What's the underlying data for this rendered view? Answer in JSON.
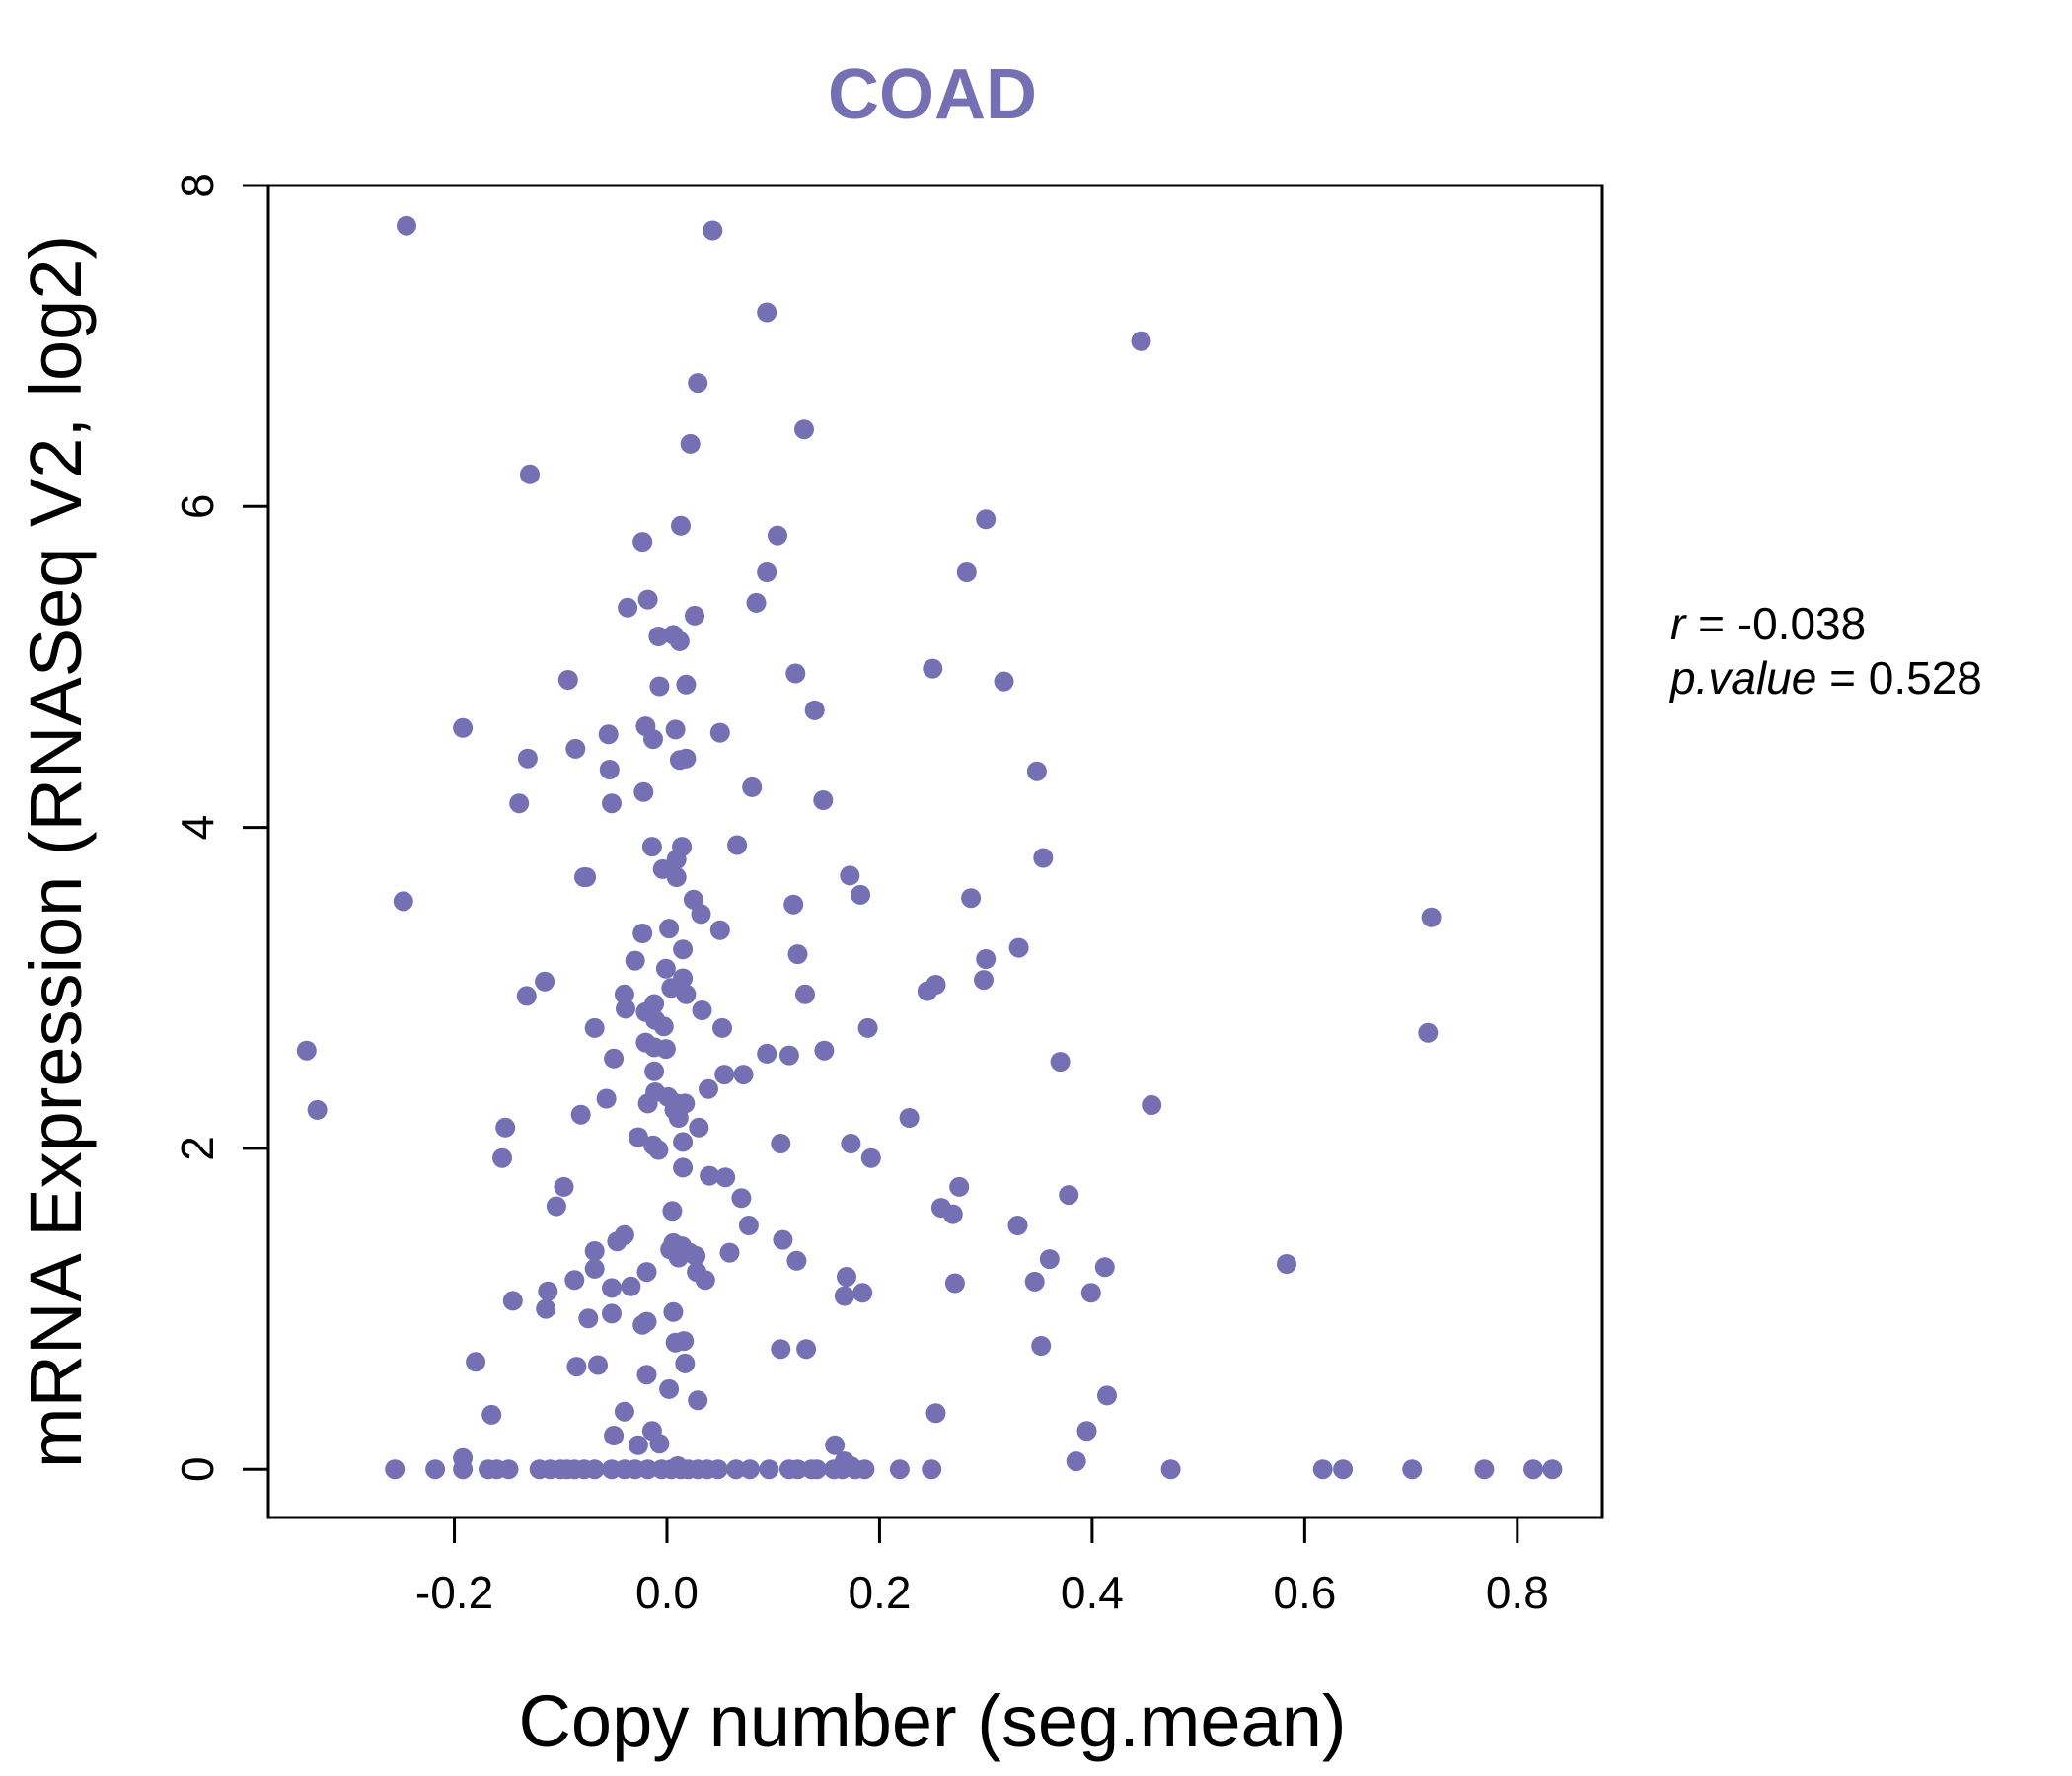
{
  "chart_data": {
    "type": "scatter",
    "title": "COAD",
    "xlabel": "Copy number (seg.mean)",
    "ylabel": "mRNA Expression (RNASeq V2, log2)",
    "xlim": [
      -0.375,
      0.88
    ],
    "ylim": [
      -0.3,
      8.0
    ],
    "x_ticks": [
      "-0.2",
      "0.0",
      "0.2",
      "0.4",
      "0.6",
      "0.8"
    ],
    "y_ticks": [
      "0",
      "2",
      "4",
      "6",
      "8"
    ],
    "grid": false,
    "legend": "none",
    "point_color": "#7570b3",
    "stats": {
      "r_label": "r",
      "r_value": "-0.038",
      "p_label": "p.value",
      "p_value": "0.528"
    },
    "points": [
      [
        -0.245,
        7.75
      ],
      [
        0.043,
        7.72
      ],
      [
        0.094,
        7.21
      ],
      [
        0.446,
        7.03
      ],
      [
        0.029,
        6.77
      ],
      [
        0.129,
        6.48
      ],
      [
        0.022,
        6.39
      ],
      [
        -0.129,
        6.2
      ],
      [
        0.3,
        5.92
      ],
      [
        0.013,
        5.88
      ],
      [
        0.104,
        5.82
      ],
      [
        -0.023,
        5.78
      ],
      [
        0.094,
        5.59
      ],
      [
        0.282,
        5.59
      ],
      [
        -0.018,
        5.42
      ],
      [
        0.084,
        5.4
      ],
      [
        -0.037,
        5.37
      ],
      [
        0.026,
        5.32
      ],
      [
        -0.008,
        5.19
      ],
      [
        0.006,
        5.2
      ],
      [
        0.012,
        5.16
      ],
      [
        0.25,
        4.99
      ],
      [
        0.121,
        4.96
      ],
      [
        0.317,
        4.91
      ],
      [
        -0.093,
        4.92
      ],
      [
        -0.007,
        4.88
      ],
      [
        0.018,
        4.89
      ],
      [
        0.139,
        4.73
      ],
      [
        -0.192,
        4.62
      ],
      [
        -0.02,
        4.63
      ],
      [
        0.008,
        4.61
      ],
      [
        0.05,
        4.59
      ],
      [
        -0.055,
        4.58
      ],
      [
        -0.013,
        4.55
      ],
      [
        -0.086,
        4.49
      ],
      [
        0.012,
        4.42
      ],
      [
        0.018,
        4.43
      ],
      [
        -0.131,
        4.43
      ],
      [
        -0.054,
        4.36
      ],
      [
        0.348,
        4.35
      ],
      [
        0.08,
        4.25
      ],
      [
        -0.022,
        4.22
      ],
      [
        -0.139,
        4.15
      ],
      [
        -0.052,
        4.15
      ],
      [
        0.147,
        4.17
      ],
      [
        0.014,
        3.88
      ],
      [
        -0.014,
        3.88
      ],
      [
        0.066,
        3.89
      ],
      [
        0.009,
        3.8
      ],
      [
        0.354,
        3.81
      ],
      [
        -0.004,
        3.74
      ],
      [
        0.009,
        3.69
      ],
      [
        -0.076,
        3.69
      ],
      [
        -0.078,
        3.69
      ],
      [
        0.172,
        3.7
      ],
      [
        0.182,
        3.58
      ],
      [
        0.286,
        3.56
      ],
      [
        -0.248,
        3.54
      ],
      [
        0.025,
        3.55
      ],
      [
        0.119,
        3.52
      ],
      [
        0.032,
        3.46
      ],
      [
        0.719,
        3.44
      ],
      [
        0.002,
        3.37
      ],
      [
        0.05,
        3.36
      ],
      [
        -0.023,
        3.34
      ],
      [
        0.331,
        3.25
      ],
      [
        0.015,
        3.24
      ],
      [
        0.123,
        3.21
      ],
      [
        -0.03,
        3.17
      ],
      [
        0.3,
        3.18
      ],
      [
        -0.001,
        3.12
      ],
      [
        0.015,
        3.06
      ],
      [
        0.298,
        3.05
      ],
      [
        -0.115,
        3.04
      ],
      [
        0.253,
        3.02
      ],
      [
        0.004,
        3.0
      ],
      [
        0.245,
        2.98
      ],
      [
        -0.132,
        2.95
      ],
      [
        0.13,
        2.96
      ],
      [
        -0.04,
        2.96
      ],
      [
        0.018,
        2.96
      ],
      [
        -0.012,
        2.9
      ],
      [
        -0.02,
        2.85
      ],
      [
        0.033,
        2.86
      ],
      [
        -0.039,
        2.87
      ],
      [
        -0.011,
        2.8
      ],
      [
        -0.003,
        2.76
      ],
      [
        -0.068,
        2.75
      ],
      [
        0.052,
        2.75
      ],
      [
        0.189,
        2.75
      ],
      [
        0.716,
        2.72
      ],
      [
        -0.02,
        2.66
      ],
      [
        -0.012,
        2.63
      ],
      [
        -0.001,
        2.62
      ],
      [
        -0.339,
        2.61
      ],
      [
        0.148,
        2.61
      ],
      [
        0.094,
        2.59
      ],
      [
        0.115,
        2.58
      ],
      [
        -0.05,
        2.56
      ],
      [
        0.37,
        2.54
      ],
      [
        -0.012,
        2.48
      ],
      [
        0.072,
        2.46
      ],
      [
        0.054,
        2.46
      ],
      [
        0.039,
        2.37
      ],
      [
        -0.011,
        2.35
      ],
      [
        0.001,
        2.32
      ],
      [
        -0.057,
        2.31
      ],
      [
        0.009,
        2.28
      ],
      [
        -0.018,
        2.28
      ],
      [
        0.017,
        2.28
      ],
      [
        0.456,
        2.27
      ],
      [
        0.007,
        2.24
      ],
      [
        -0.329,
        2.24
      ],
      [
        -0.081,
        2.21
      ],
      [
        0.011,
        2.19
      ],
      [
        0.228,
        2.19
      ],
      [
        0.03,
        2.13
      ],
      [
        -0.152,
        2.13
      ],
      [
        -0.027,
        2.07
      ],
      [
        -0.013,
        2.02
      ],
      [
        0.015,
        2.04
      ],
      [
        0.107,
        2.03
      ],
      [
        0.173,
        2.03
      ],
      [
        -0.008,
        1.99
      ],
      [
        0.192,
        1.94
      ],
      [
        -0.155,
        1.94
      ],
      [
        0.015,
        1.88
      ],
      [
        0.04,
        1.83
      ],
      [
        0.055,
        1.82
      ],
      [
        -0.097,
        1.76
      ],
      [
        0.275,
        1.76
      ],
      [
        0.378,
        1.71
      ],
      [
        0.07,
        1.69
      ],
      [
        -0.104,
        1.64
      ],
      [
        0.258,
        1.63
      ],
      [
        0.005,
        1.61
      ],
      [
        0.269,
        1.59
      ],
      [
        0.077,
        1.52
      ],
      [
        0.33,
        1.52
      ],
      [
        -0.04,
        1.46
      ],
      [
        0.109,
        1.43
      ],
      [
        -0.047,
        1.42
      ],
      [
        0.006,
        1.41
      ],
      [
        0.014,
        1.39
      ],
      [
        0.003,
        1.37
      ],
      [
        -0.068,
        1.36
      ],
      [
        0.021,
        1.35
      ],
      [
        0.059,
        1.35
      ],
      [
        0.027,
        1.33
      ],
      [
        0.011,
        1.32
      ],
      [
        0.36,
        1.31
      ],
      [
        0.122,
        1.3
      ],
      [
        0.583,
        1.28
      ],
      [
        0.412,
        1.26
      ],
      [
        -0.068,
        1.25
      ],
      [
        -0.019,
        1.23
      ],
      [
        0.028,
        1.23
      ],
      [
        0.036,
        1.18
      ],
      [
        0.169,
        1.2
      ],
      [
        -0.087,
        1.18
      ],
      [
        0.346,
        1.17
      ],
      [
        0.271,
        1.16
      ],
      [
        -0.034,
        1.14
      ],
      [
        -0.052,
        1.13
      ],
      [
        0.184,
        1.1
      ],
      [
        -0.112,
        1.11
      ],
      [
        0.399,
        1.1
      ],
      [
        0.167,
        1.08
      ],
      [
        -0.145,
        1.05
      ],
      [
        -0.114,
        1.0
      ],
      [
        0.006,
        0.98
      ],
      [
        -0.052,
        0.97
      ],
      [
        -0.074,
        0.94
      ],
      [
        -0.019,
        0.92
      ],
      [
        -0.023,
        0.9
      ],
      [
        0.016,
        0.8
      ],
      [
        0.008,
        0.79
      ],
      [
        0.352,
        0.77
      ],
      [
        0.107,
        0.75
      ],
      [
        0.131,
        0.75
      ],
      [
        -0.18,
        0.67
      ],
      [
        0.017,
        0.66
      ],
      [
        -0.065,
        0.65
      ],
      [
        -0.085,
        0.64
      ],
      [
        -0.019,
        0.59
      ],
      [
        0.002,
        0.5
      ],
      [
        0.414,
        0.46
      ],
      [
        0.029,
        0.43
      ],
      [
        -0.04,
        0.36
      ],
      [
        0.253,
        0.35
      ],
      [
        -0.165,
        0.34
      ],
      [
        0.395,
        0.24
      ],
      [
        -0.014,
        0.24
      ],
      [
        -0.05,
        0.21
      ],
      [
        -0.007,
        0.16
      ],
      [
        -0.027,
        0.15
      ],
      [
        0.158,
        0.15
      ],
      [
        0.385,
        0.05
      ],
      [
        -0.192,
        0.07
      ],
      [
        0.167,
        0.05
      ],
      [
        0.173,
        0.02
      ],
      [
        0.01,
        0.02
      ],
      [
        -0.256,
        0.0
      ],
      [
        -0.218,
        0.0
      ],
      [
        -0.192,
        0.0
      ],
      [
        -0.168,
        0.0
      ],
      [
        -0.16,
        0.0
      ],
      [
        -0.149,
        0.0
      ],
      [
        -0.12,
        0.0
      ],
      [
        -0.11,
        0.0
      ],
      [
        -0.1,
        0.0
      ],
      [
        -0.094,
        0.0
      ],
      [
        -0.087,
        0.0
      ],
      [
        -0.078,
        0.0
      ],
      [
        -0.068,
        0.0
      ],
      [
        -0.052,
        0.0
      ],
      [
        -0.04,
        0.0
      ],
      [
        -0.03,
        0.0
      ],
      [
        -0.018,
        0.0
      ],
      [
        -0.005,
        0.0
      ],
      [
        0.004,
        0.0
      ],
      [
        0.013,
        0.0
      ],
      [
        0.02,
        0.0
      ],
      [
        0.029,
        0.0
      ],
      [
        0.038,
        0.0
      ],
      [
        0.048,
        0.0
      ],
      [
        0.065,
        0.0
      ],
      [
        0.078,
        0.0
      ],
      [
        0.096,
        0.0
      ],
      [
        0.115,
        0.0
      ],
      [
        0.123,
        0.0
      ],
      [
        0.136,
        0.0
      ],
      [
        0.141,
        0.0
      ],
      [
        0.157,
        0.0
      ],
      [
        0.165,
        0.0
      ],
      [
        0.177,
        0.0
      ],
      [
        0.186,
        0.0
      ],
      [
        0.219,
        0.0
      ],
      [
        0.249,
        0.0
      ],
      [
        0.474,
        0.0
      ],
      [
        0.617,
        0.0
      ],
      [
        0.636,
        0.0
      ],
      [
        0.701,
        0.0
      ],
      [
        0.769,
        0.0
      ],
      [
        0.815,
        0.0
      ],
      [
        0.833,
        0.0
      ]
    ]
  }
}
